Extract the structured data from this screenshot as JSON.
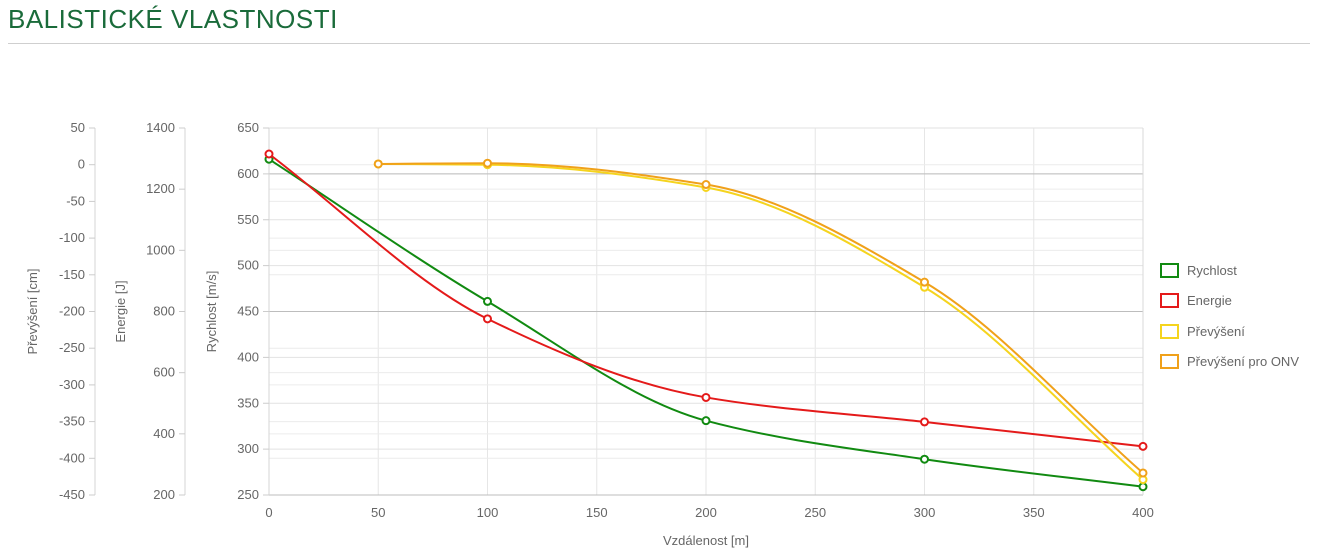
{
  "page": {
    "title": "BALISTICKÉ VLASTNOSTI"
  },
  "chart_data": {
    "type": "line",
    "xlabel": "Vzdálenost [m]",
    "xlim": [
      0,
      400
    ],
    "x_ticks": [
      0,
      50,
      100,
      150,
      200,
      250,
      300,
      350,
      400
    ],
    "axes": [
      {
        "id": "prevyseni",
        "label": "Převýšení [cm]",
        "lim": [
          -450,
          50
        ],
        "ticks": [
          50,
          0,
          -50,
          -100,
          -150,
          -200,
          -250,
          -300,
          -350,
          -400,
          -450
        ]
      },
      {
        "id": "energie",
        "label": "Energie [J]",
        "lim": [
          200,
          1400
        ],
        "ticks": [
          1400,
          1200,
          1000,
          800,
          600,
          400,
          200
        ]
      },
      {
        "id": "rychlost",
        "label": "Rychlost [m/s]",
        "lim": [
          250,
          650
        ],
        "ticks": [
          650,
          600,
          550,
          500,
          450,
          400,
          350,
          300,
          250
        ]
      }
    ],
    "grid": true,
    "legend_position": "right",
    "series": [
      {
        "name": "Rychlost",
        "axis": "rychlost",
        "color": "#118a11",
        "x": [
          0,
          100,
          200,
          300,
          400
        ],
        "y": [
          616,
          461,
          331,
          289,
          259
        ]
      },
      {
        "name": "Energie",
        "axis": "energie",
        "color": "#e41a1a",
        "x": [
          0,
          100,
          200,
          300,
          400
        ],
        "y": [
          1315,
          776,
          519,
          439,
          359
        ]
      },
      {
        "name": "Převýšení",
        "axis": "prevyseni",
        "color": "#f5d41e",
        "x": [
          50,
          100,
          200,
          300,
          400
        ],
        "y": [
          1,
          0,
          -31,
          -167,
          -429
        ]
      },
      {
        "name": "Převýšení pro ONV",
        "axis": "prevyseni",
        "color": "#f0a11a",
        "x": [
          50,
          100,
          200,
          300,
          400
        ],
        "y": [
          1,
          2,
          -27,
          -160,
          -420
        ]
      }
    ]
  }
}
